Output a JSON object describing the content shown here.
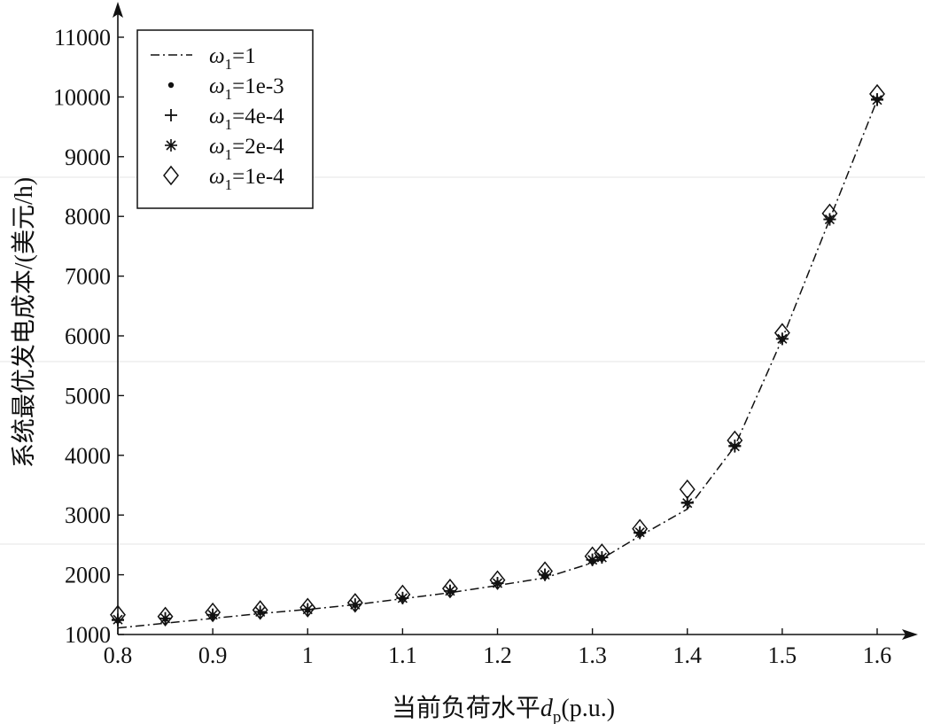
{
  "chart_data": {
    "type": "line",
    "title": "",
    "xlabel": "当前负荷水平",
    "xlabel_var": "d",
    "xlabel_sub": "p",
    "xlabel_unit": "(p.u.)",
    "ylabel": "系统最优发电成本/(美元/h)",
    "xlim": [
      0.8,
      1.6
    ],
    "ylim": [
      1000,
      11000
    ],
    "xticks": [
      0.8,
      0.9,
      1,
      1.1,
      1.2,
      1.3,
      1.4,
      1.5,
      1.6
    ],
    "xtick_labels": [
      "0.8",
      "0.9",
      "1",
      "1.1",
      "1.2",
      "1.3",
      "1.4",
      "1.5",
      "1.6"
    ],
    "yticks": [
      1000,
      2000,
      3000,
      4000,
      5000,
      6000,
      7000,
      8000,
      9000,
      10000,
      11000
    ],
    "ytick_labels": [
      "1000",
      "2000",
      "3000",
      "4000",
      "5000",
      "6000",
      "7000",
      "8000",
      "9000",
      "10000",
      "11000"
    ],
    "grid": false,
    "legend_position": "top-left",
    "series": [
      {
        "name": "=1",
        "symbol": "ω",
        "sub": "1",
        "marker": "dashdot-line",
        "x": [
          0.8,
          0.85,
          0.9,
          0.95,
          1.0,
          1.05,
          1.1,
          1.15,
          1.2,
          1.25,
          1.3,
          1.31,
          1.35,
          1.4,
          1.45,
          1.5,
          1.55,
          1.6
        ],
        "y": [
          1110,
          1190,
          1270,
          1350,
          1420,
          1500,
          1600,
          1700,
          1820,
          1950,
          2200,
          2270,
          2650,
          3100,
          4150,
          5950,
          7950,
          9950
        ]
      },
      {
        "name": "=1e-3",
        "symbol": "ω",
        "sub": "1",
        "marker": "dot",
        "x": [
          0.8,
          0.85,
          0.9,
          0.95,
          1.0,
          1.05,
          1.1,
          1.15,
          1.2,
          1.25,
          1.3,
          1.31,
          1.35,
          1.4,
          1.45,
          1.5,
          1.55,
          1.6
        ],
        "y": [
          1230,
          1260,
          1320,
          1370,
          1410,
          1490,
          1610,
          1720,
          1860,
          1990,
          2240,
          2290,
          2700,
          3200,
          4150,
          5940,
          7940,
          9960
        ]
      },
      {
        "name": "=4e-4",
        "symbol": "ω",
        "sub": "1",
        "marker": "plus",
        "x": [
          0.8,
          0.85,
          0.9,
          0.95,
          1.0,
          1.05,
          1.1,
          1.15,
          1.2,
          1.25,
          1.3,
          1.31,
          1.35,
          1.4,
          1.45,
          1.5,
          1.55,
          1.6
        ],
        "y": [
          1240,
          1270,
          1330,
          1380,
          1420,
          1500,
          1610,
          1730,
          1860,
          2000,
          2250,
          2290,
          2700,
          3210,
          4160,
          5950,
          7950,
          9960
        ]
      },
      {
        "name": "=2e-4",
        "symbol": "ω",
        "sub": "1",
        "marker": "star",
        "x": [
          0.8,
          0.85,
          0.9,
          0.95,
          1.0,
          1.05,
          1.1,
          1.15,
          1.2,
          1.25,
          1.3,
          1.31,
          1.35,
          1.4,
          1.45,
          1.5,
          1.55,
          1.6
        ],
        "y": [
          1250,
          1270,
          1330,
          1380,
          1420,
          1500,
          1610,
          1730,
          1860,
          2000,
          2250,
          2290,
          2710,
          3200,
          4150,
          5950,
          7950,
          9950
        ]
      },
      {
        "name": "=1e-4",
        "symbol": "ω",
        "sub": "1",
        "marker": "diamond",
        "x": [
          0.8,
          0.85,
          0.9,
          0.95,
          1.0,
          1.05,
          1.1,
          1.15,
          1.2,
          1.25,
          1.3,
          1.31,
          1.35,
          1.4,
          1.45,
          1.5,
          1.55,
          1.6
        ],
        "y": [
          1330,
          1300,
          1370,
          1410,
          1450,
          1530,
          1670,
          1770,
          1910,
          2060,
          2310,
          2360,
          2770,
          3430,
          4250,
          6050,
          8050,
          10050
        ]
      }
    ]
  }
}
